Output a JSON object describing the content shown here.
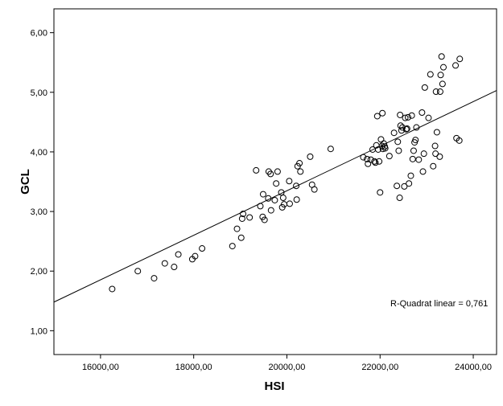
{
  "chart_data": {
    "type": "scatter",
    "title": "",
    "xlabel": "HSI",
    "ylabel": "GCL",
    "xlim": [
      15000,
      24500
    ],
    "ylim": [
      0.6,
      6.4
    ],
    "x_ticks": [
      16000,
      18000,
      20000,
      22000,
      24000
    ],
    "x_tick_labels": [
      "16000,00",
      "18000,00",
      "20000,00",
      "22000,00",
      "24000,00"
    ],
    "y_ticks": [
      1,
      2,
      3,
      4,
      5,
      6
    ],
    "y_tick_labels": [
      "1,00",
      "2,00",
      "3,00",
      "4,00",
      "5,00",
      "6,00"
    ],
    "grid": false,
    "legend": "none",
    "annotation": "R-Quadrat linear = 0,761",
    "fit_line": {
      "x": [
        15000,
        24500
      ],
      "y": [
        1.48,
        5.03
      ]
    },
    "points": [
      {
        "x": 16250,
        "y": 1.7
      },
      {
        "x": 16800,
        "y": 2.0
      },
      {
        "x": 17150,
        "y": 1.88
      },
      {
        "x": 17380,
        "y": 2.13
      },
      {
        "x": 17580,
        "y": 2.07
      },
      {
        "x": 17670,
        "y": 2.28
      },
      {
        "x": 17970,
        "y": 2.2
      },
      {
        "x": 18030,
        "y": 2.25
      },
      {
        "x": 18180,
        "y": 2.38
      },
      {
        "x": 18830,
        "y": 2.42
      },
      {
        "x": 18930,
        "y": 2.71
      },
      {
        "x": 19020,
        "y": 2.56
      },
      {
        "x": 19040,
        "y": 2.88
      },
      {
        "x": 19060,
        "y": 2.96
      },
      {
        "x": 19200,
        "y": 2.9
      },
      {
        "x": 19340,
        "y": 3.69
      },
      {
        "x": 19430,
        "y": 3.09
      },
      {
        "x": 19480,
        "y": 2.91
      },
      {
        "x": 19490,
        "y": 3.29
      },
      {
        "x": 19520,
        "y": 2.86
      },
      {
        "x": 19600,
        "y": 3.22
      },
      {
        "x": 19610,
        "y": 3.67
      },
      {
        "x": 19650,
        "y": 3.63
      },
      {
        "x": 19660,
        "y": 3.02
      },
      {
        "x": 19740,
        "y": 3.19
      },
      {
        "x": 19770,
        "y": 3.47
      },
      {
        "x": 19800,
        "y": 3.67
      },
      {
        "x": 19880,
        "y": 3.32
      },
      {
        "x": 19900,
        "y": 3.07
      },
      {
        "x": 19920,
        "y": 3.23
      },
      {
        "x": 19940,
        "y": 3.12
      },
      {
        "x": 20050,
        "y": 3.51
      },
      {
        "x": 20060,
        "y": 3.13
      },
      {
        "x": 20200,
        "y": 3.43
      },
      {
        "x": 20210,
        "y": 3.2
      },
      {
        "x": 20230,
        "y": 3.76
      },
      {
        "x": 20270,
        "y": 3.81
      },
      {
        "x": 20290,
        "y": 3.67
      },
      {
        "x": 20500,
        "y": 3.92
      },
      {
        "x": 20540,
        "y": 3.45
      },
      {
        "x": 20590,
        "y": 3.37
      },
      {
        "x": 20940,
        "y": 4.05
      },
      {
        "x": 21640,
        "y": 3.91
      },
      {
        "x": 21720,
        "y": 3.88
      },
      {
        "x": 21740,
        "y": 3.8
      },
      {
        "x": 21800,
        "y": 3.87
      },
      {
        "x": 21840,
        "y": 4.04
      },
      {
        "x": 21880,
        "y": 3.84
      },
      {
        "x": 21900,
        "y": 3.82
      },
      {
        "x": 21920,
        "y": 4.11
      },
      {
        "x": 21940,
        "y": 4.6
      },
      {
        "x": 21960,
        "y": 4.04
      },
      {
        "x": 21980,
        "y": 3.84
      },
      {
        "x": 22000,
        "y": 3.32
      },
      {
        "x": 22020,
        "y": 4.21
      },
      {
        "x": 22040,
        "y": 4.1
      },
      {
        "x": 22050,
        "y": 4.65
      },
      {
        "x": 22060,
        "y": 4.05
      },
      {
        "x": 22080,
        "y": 4.14
      },
      {
        "x": 22100,
        "y": 4.09
      },
      {
        "x": 22110,
        "y": 4.06
      },
      {
        "x": 22200,
        "y": 3.93
      },
      {
        "x": 22300,
        "y": 4.32
      },
      {
        "x": 22360,
        "y": 3.43
      },
      {
        "x": 22380,
        "y": 4.17
      },
      {
        "x": 22400,
        "y": 4.02
      },
      {
        "x": 22420,
        "y": 3.23
      },
      {
        "x": 22430,
        "y": 4.62
      },
      {
        "x": 22440,
        "y": 4.44
      },
      {
        "x": 22460,
        "y": 4.36
      },
      {
        "x": 22480,
        "y": 4.41
      },
      {
        "x": 22520,
        "y": 3.42
      },
      {
        "x": 22540,
        "y": 4.57
      },
      {
        "x": 22560,
        "y": 4.38
      },
      {
        "x": 22580,
        "y": 4.39
      },
      {
        "x": 22600,
        "y": 4.58
      },
      {
        "x": 22620,
        "y": 3.47
      },
      {
        "x": 22660,
        "y": 3.6
      },
      {
        "x": 22680,
        "y": 4.61
      },
      {
        "x": 22700,
        "y": 3.88
      },
      {
        "x": 22720,
        "y": 4.02
      },
      {
        "x": 22740,
        "y": 4.16
      },
      {
        "x": 22760,
        "y": 4.2
      },
      {
        "x": 22780,
        "y": 4.41
      },
      {
        "x": 22830,
        "y": 3.87
      },
      {
        "x": 22900,
        "y": 4.66
      },
      {
        "x": 22920,
        "y": 3.67
      },
      {
        "x": 22940,
        "y": 3.97
      },
      {
        "x": 22960,
        "y": 5.08
      },
      {
        "x": 23040,
        "y": 4.57
      },
      {
        "x": 23080,
        "y": 5.3
      },
      {
        "x": 23140,
        "y": 3.76
      },
      {
        "x": 23180,
        "y": 4.1
      },
      {
        "x": 23190,
        "y": 3.97
      },
      {
        "x": 23200,
        "y": 5.01
      },
      {
        "x": 23220,
        "y": 4.33
      },
      {
        "x": 23280,
        "y": 3.92
      },
      {
        "x": 23290,
        "y": 5.01
      },
      {
        "x": 23300,
        "y": 5.29
      },
      {
        "x": 23320,
        "y": 5.6
      },
      {
        "x": 23340,
        "y": 5.14
      },
      {
        "x": 23360,
        "y": 5.42
      },
      {
        "x": 23620,
        "y": 5.45
      },
      {
        "x": 23640,
        "y": 4.23
      },
      {
        "x": 23700,
        "y": 4.19
      },
      {
        "x": 23710,
        "y": 5.56
      }
    ]
  }
}
